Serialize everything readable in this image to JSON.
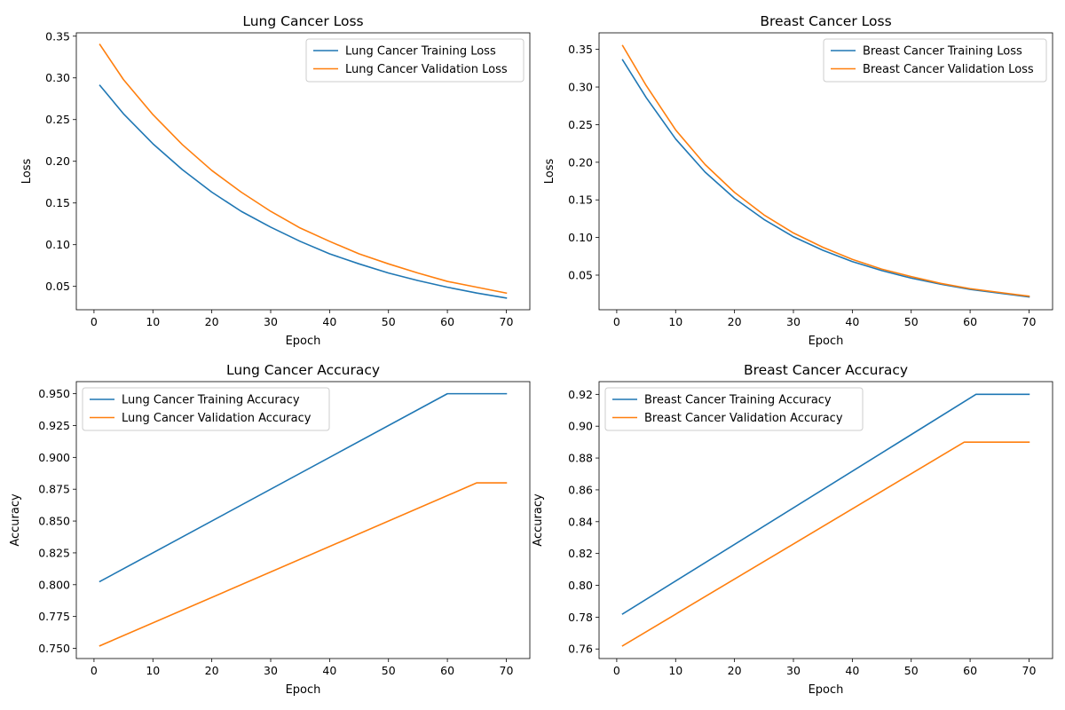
{
  "chart_data": [
    {
      "type": "line",
      "title": "Lung Cancer Loss",
      "xlabel": "Epoch",
      "ylabel": "Loss",
      "xlim": [
        -3,
        74
      ],
      "ylim": [
        0.022,
        0.354
      ],
      "xticks": [
        0,
        10,
        20,
        30,
        40,
        50,
        60,
        70
      ],
      "yticks": [
        0.05,
        0.1,
        0.15,
        0.2,
        0.25,
        0.3,
        0.35
      ],
      "ytick_labels": [
        "0.05",
        "0.10",
        "0.15",
        "0.20",
        "0.25",
        "0.30",
        "0.35"
      ],
      "legend_position": "upper right",
      "grid": false,
      "series": [
        {
          "name": "Lung Cancer Training Loss",
          "color": "#1f77b4",
          "x": [
            1,
            5,
            10,
            15,
            20,
            25,
            30,
            35,
            40,
            45,
            50,
            55,
            60,
            65,
            70
          ],
          "y": [
            0.291,
            0.257,
            0.221,
            0.19,
            0.163,
            0.14,
            0.121,
            0.104,
            0.089,
            0.077,
            0.066,
            0.057,
            0.049,
            0.042,
            0.036
          ]
        },
        {
          "name": "Lung Cancer Validation Loss",
          "color": "#ff7f0e",
          "x": [
            1,
            5,
            10,
            15,
            20,
            25,
            30,
            35,
            40,
            45,
            50,
            55,
            60,
            65,
            70
          ],
          "y": [
            0.34,
            0.298,
            0.256,
            0.22,
            0.189,
            0.163,
            0.14,
            0.12,
            0.104,
            0.089,
            0.077,
            0.066,
            0.056,
            0.049,
            0.042
          ]
        }
      ]
    },
    {
      "type": "line",
      "title": "Breast Cancer Loss",
      "xlabel": "Epoch",
      "ylabel": "Loss",
      "xlim": [
        -3,
        74
      ],
      "ylim": [
        0.004,
        0.372
      ],
      "xticks": [
        0,
        10,
        20,
        30,
        40,
        50,
        60,
        70
      ],
      "yticks": [
        0.05,
        0.1,
        0.15,
        0.2,
        0.25,
        0.3,
        0.35
      ],
      "ytick_labels": [
        "0.05",
        "0.10",
        "0.15",
        "0.20",
        "0.25",
        "0.30",
        "0.35"
      ],
      "legend_position": "upper right",
      "grid": false,
      "series": [
        {
          "name": "Breast Cancer Training Loss",
          "color": "#1f77b4",
          "x": [
            1,
            5,
            10,
            15,
            20,
            25,
            30,
            35,
            40,
            45,
            50,
            55,
            60,
            65,
            70
          ],
          "y": [
            0.336,
            0.286,
            0.231,
            0.187,
            0.152,
            0.124,
            0.101,
            0.083,
            0.068,
            0.056,
            0.046,
            0.038,
            0.031,
            0.026,
            0.021
          ]
        },
        {
          "name": "Breast Cancer Validation Loss",
          "color": "#ff7f0e",
          "x": [
            1,
            5,
            10,
            15,
            20,
            25,
            30,
            35,
            40,
            45,
            50,
            55,
            60,
            65,
            70
          ],
          "y": [
            0.355,
            0.302,
            0.243,
            0.197,
            0.16,
            0.13,
            0.106,
            0.087,
            0.071,
            0.058,
            0.048,
            0.039,
            0.032,
            0.027,
            0.022
          ]
        }
      ]
    },
    {
      "type": "line",
      "title": "Lung Cancer Accuracy",
      "xlabel": "Epoch",
      "ylabel": "Accuracy",
      "xlim": [
        -3,
        74
      ],
      "ylim": [
        0.742,
        0.9595
      ],
      "xticks": [
        0,
        10,
        20,
        30,
        40,
        50,
        60,
        70
      ],
      "yticks": [
        0.75,
        0.775,
        0.8,
        0.825,
        0.85,
        0.875,
        0.9,
        0.925,
        0.95
      ],
      "ytick_labels": [
        "0.750",
        "0.775",
        "0.800",
        "0.825",
        "0.850",
        "0.875",
        "0.900",
        "0.925",
        "0.950"
      ],
      "legend_position": "upper left",
      "grid": false,
      "series": [
        {
          "name": "Lung Cancer Training Accuracy",
          "color": "#1f77b4",
          "x": [
            1,
            60,
            70
          ],
          "y": [
            0.8025,
            0.95,
            0.95
          ]
        },
        {
          "name": "Lung Cancer Validation Accuracy",
          "color": "#ff7f0e",
          "x": [
            1,
            65,
            70
          ],
          "y": [
            0.752,
            0.88,
            0.88
          ]
        }
      ]
    },
    {
      "type": "line",
      "title": "Breast Cancer Accuracy",
      "xlabel": "Epoch",
      "ylabel": "Accuracy",
      "xlim": [
        -3,
        74
      ],
      "ylim": [
        0.754,
        0.928
      ],
      "xticks": [
        0,
        10,
        20,
        30,
        40,
        50,
        60,
        70
      ],
      "yticks": [
        0.76,
        0.78,
        0.8,
        0.82,
        0.84,
        0.86,
        0.88,
        0.9,
        0.92
      ],
      "ytick_labels": [
        "0.76",
        "0.78",
        "0.80",
        "0.82",
        "0.84",
        "0.86",
        "0.88",
        "0.90",
        "0.92"
      ],
      "legend_position": "upper left",
      "grid": false,
      "series": [
        {
          "name": "Breast Cancer Training Accuracy",
          "color": "#1f77b4",
          "x": [
            1,
            61,
            70
          ],
          "y": [
            0.782,
            0.92,
            0.92
          ]
        },
        {
          "name": "Breast Cancer Validation Accuracy",
          "color": "#ff7f0e",
          "x": [
            1,
            59,
            70
          ],
          "y": [
            0.762,
            0.89,
            0.89
          ]
        }
      ]
    }
  ]
}
